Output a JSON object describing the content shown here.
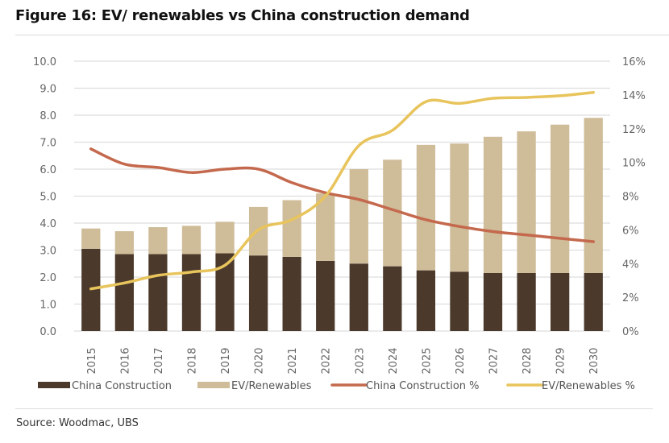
{
  "title": "Figure 16: EV/ renewables vs China construction demand",
  "source": "Source: Woodmac, UBS",
  "colors": {
    "china_construction": "#4b3a2c",
    "ev_renewables": "#cfbc99",
    "china_construction_pct": "#c4694d",
    "ev_renewables_pct": "#e8c45c",
    "grid": "#dedede",
    "axis_text": "#666666"
  },
  "chart_data": {
    "type": "bar",
    "stacked": true,
    "title": "Figure 16: EV/ renewables vs China construction demand",
    "xlabel": "",
    "ylabel": "",
    "categories": [
      "2015",
      "2016",
      "2017",
      "2018",
      "2019",
      "2020",
      "2021",
      "2022",
      "2023",
      "2024",
      "2025",
      "2026",
      "2027",
      "2028",
      "2029",
      "2030"
    ],
    "ylim": [
      0,
      10
    ],
    "y_ticks": [
      "0.0",
      "1.0",
      "2.0",
      "3.0",
      "4.0",
      "5.0",
      "6.0",
      "7.0",
      "8.0",
      "9.0",
      "10.0"
    ],
    "y2lim": [
      0,
      16
    ],
    "y2_ticks": [
      "0%",
      "2%",
      "4%",
      "6%",
      "8%",
      "10%",
      "12%",
      "14%",
      "16%"
    ],
    "grid": true,
    "legend_position": "bottom",
    "series": [
      {
        "name": "China Construction",
        "type": "bar",
        "axis": "left",
        "values": [
          3.05,
          2.85,
          2.85,
          2.85,
          2.88,
          2.8,
          2.75,
          2.6,
          2.5,
          2.4,
          2.25,
          2.2,
          2.15,
          2.15,
          2.15,
          2.15
        ]
      },
      {
        "name": "EV/Renewables",
        "type": "bar",
        "axis": "left",
        "values": [
          0.75,
          0.85,
          1.0,
          1.05,
          1.17,
          1.8,
          2.1,
          2.5,
          3.5,
          3.95,
          4.65,
          4.75,
          5.05,
          5.25,
          5.5,
          5.75
        ]
      },
      {
        "name": "China Construction %",
        "type": "line",
        "axis": "right",
        "values": [
          10.8,
          9.9,
          9.7,
          9.4,
          9.6,
          9.6,
          8.8,
          8.2,
          7.8,
          7.2,
          6.6,
          6.2,
          5.9,
          5.7,
          5.5,
          5.3
        ]
      },
      {
        "name": "EV/Renewables %",
        "type": "line",
        "axis": "right",
        "values": [
          2.5,
          2.85,
          3.3,
          3.5,
          3.9,
          6.0,
          6.6,
          8.0,
          11.0,
          11.9,
          13.6,
          13.5,
          13.8,
          13.85,
          13.95,
          14.15
        ]
      }
    ]
  }
}
